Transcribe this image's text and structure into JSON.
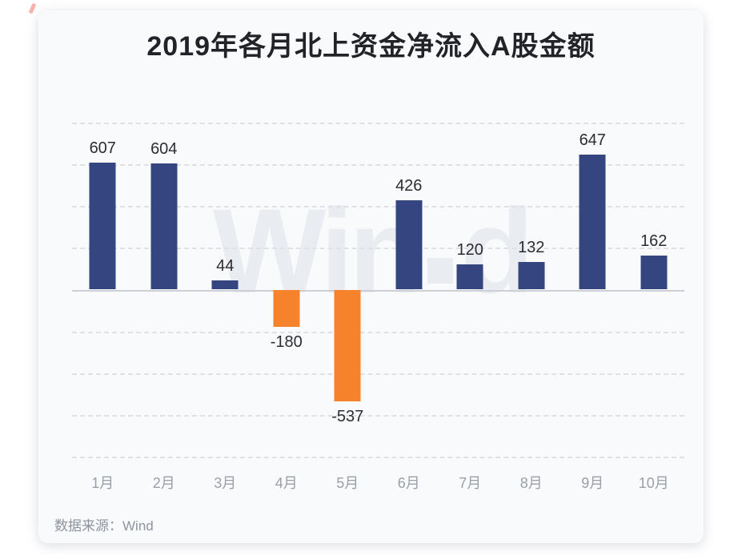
{
  "chart_data": {
    "type": "bar",
    "title": "2019年各月北上资金净流入A股金额",
    "categories": [
      "1月",
      "2月",
      "3月",
      "4月",
      "5月",
      "6月",
      "7月",
      "8月",
      "9月",
      "10月"
    ],
    "values": [
      607,
      604,
      44,
      -180,
      -537,
      426,
      120,
      132,
      647,
      162
    ],
    "data_labels": [
      "607",
      "604",
      "44",
      "-180",
      "-537",
      "426",
      "120",
      "132",
      "647",
      "162"
    ],
    "xlabel": "",
    "ylabel": "",
    "ylim": [
      -800,
      800
    ],
    "grid_step": 200,
    "grid": "horizontal-dashed",
    "legend": "none",
    "positive_color": "#35457f",
    "negative_color": "#f6832b"
  },
  "watermark": {
    "part1": "Win",
    "part2": "d",
    "full": "Wind"
  },
  "footer": {
    "source_note": "数据来源：Wind"
  },
  "colors": {
    "page_background": "#ffffff",
    "card_background": "#f9fafc",
    "bar_positive": "#35457f",
    "bar_negative": "#f6832b",
    "gridline": "#dfe1e6",
    "zero_axis": "#ccd0d6",
    "title_text": "#212328",
    "value_label_text": "#2b2d33",
    "month_label_text": "#9aa0a8",
    "source_text": "#8d949e",
    "watermark_text": "#e9ecf0"
  }
}
